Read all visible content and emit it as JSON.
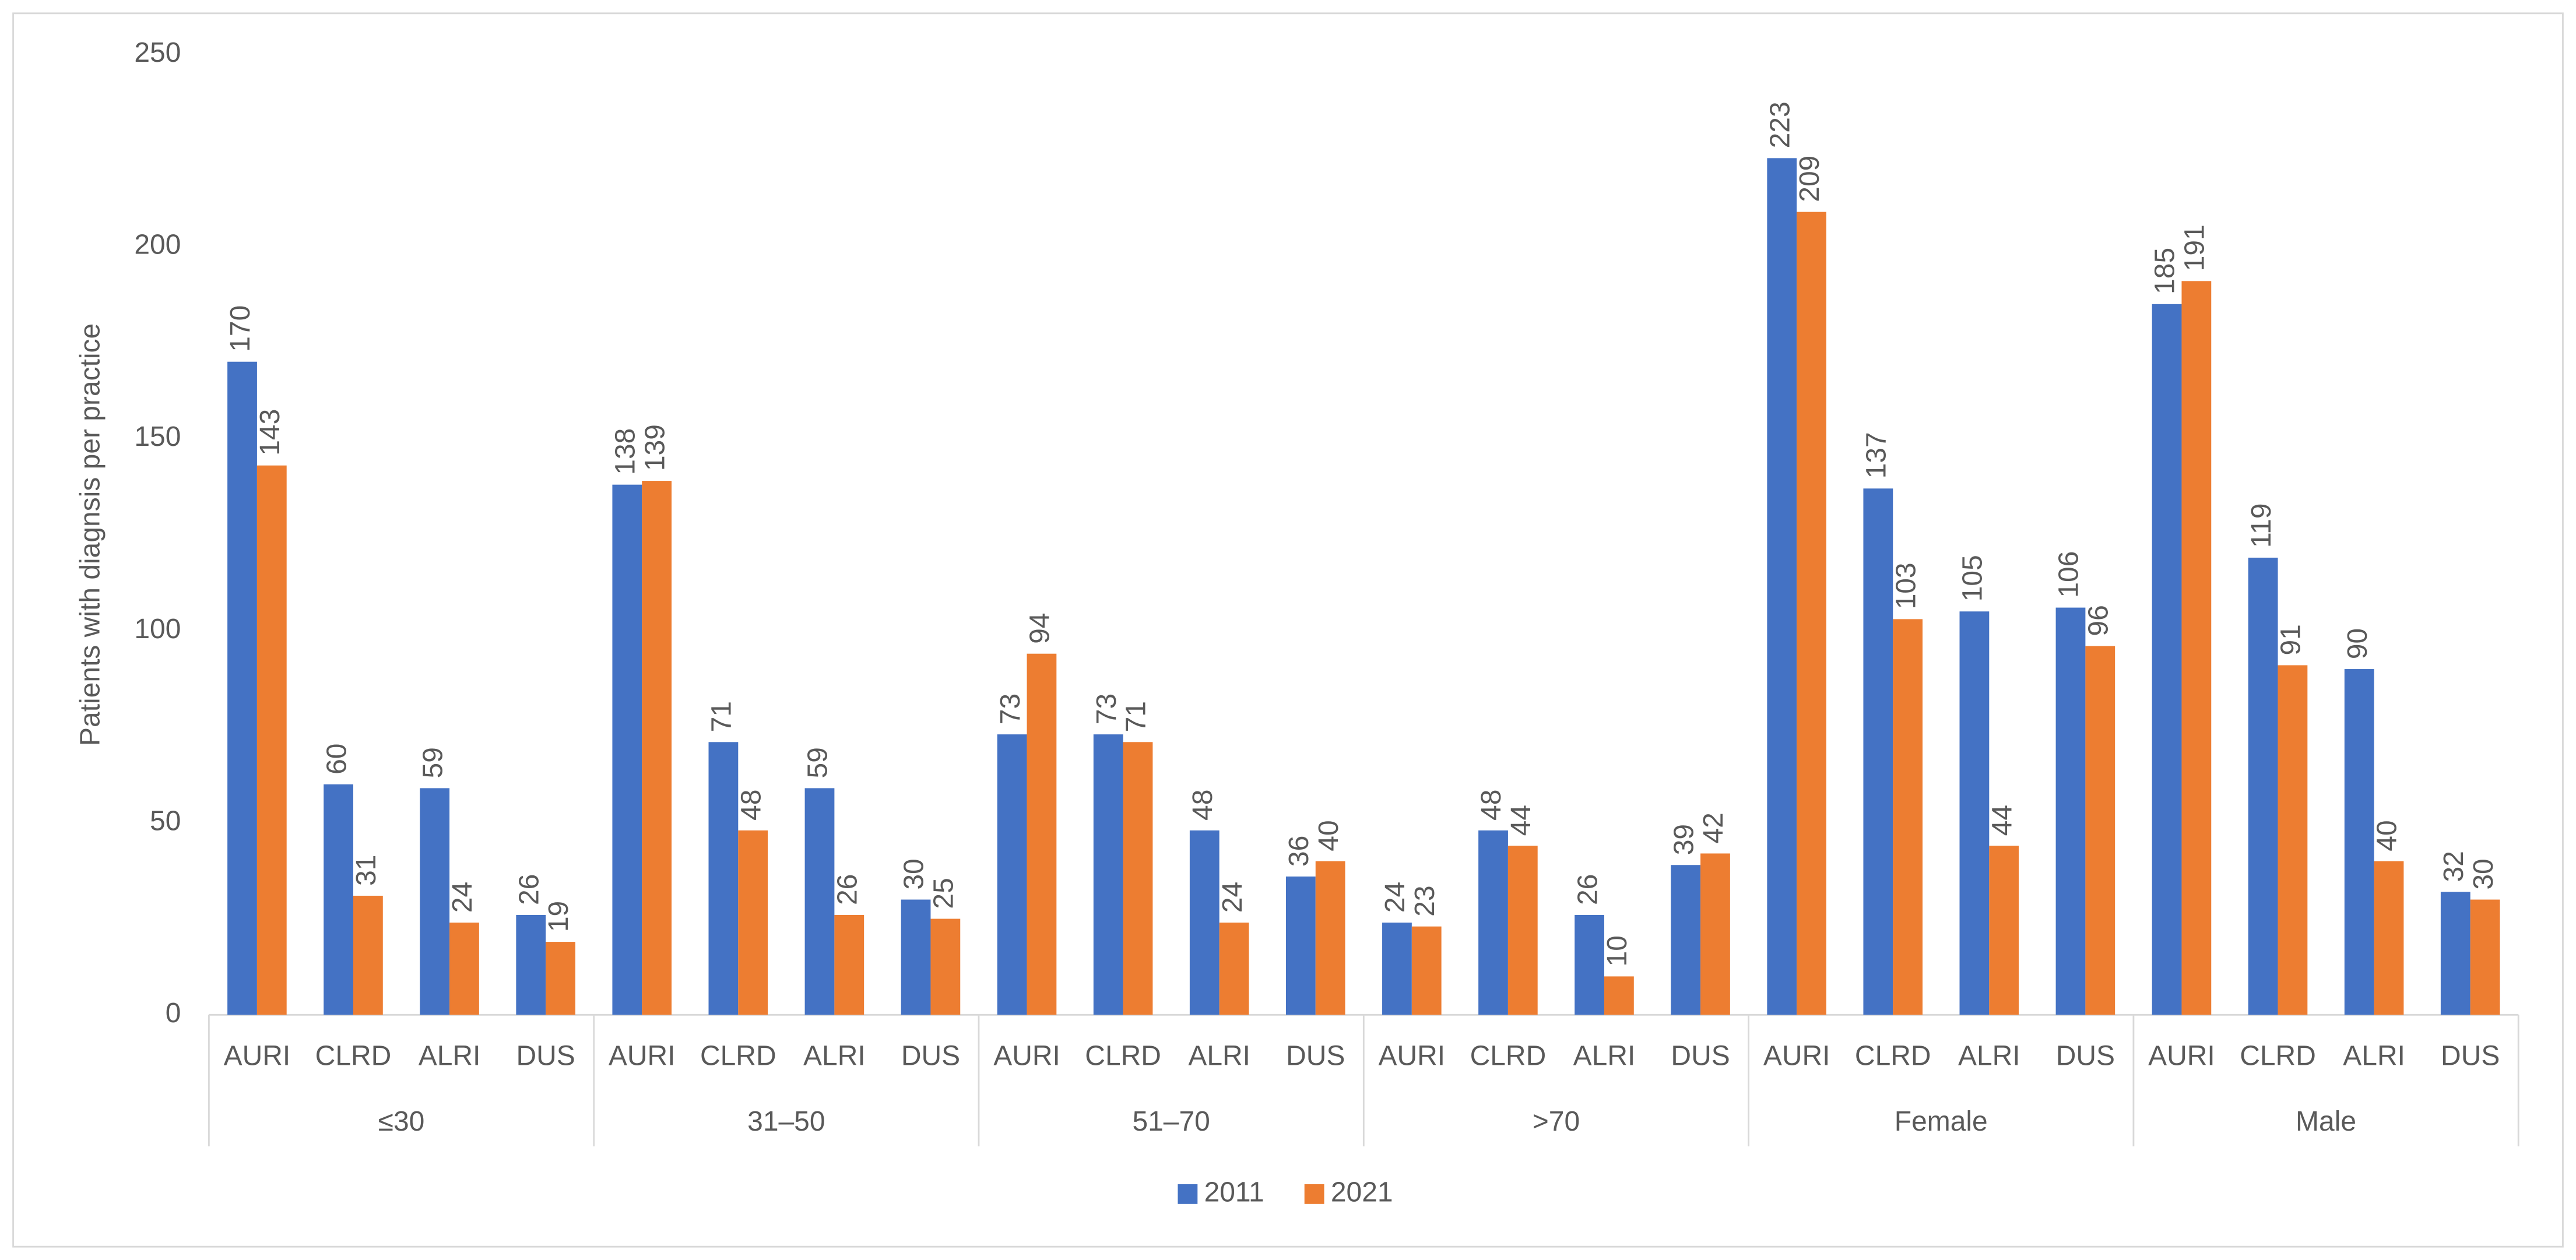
{
  "chart_data": {
    "type": "bar",
    "y_label": "Patients with diagnsis per practice",
    "groups": [
      "≤30",
      "31–50",
      "51–70",
      ">70",
      "Female",
      "Male"
    ],
    "categories": [
      "AURI",
      "CLRD",
      "ALRI",
      "DUS",
      "AURI",
      "CLRD",
      "ALRI",
      "DUS",
      "AURI",
      "CLRD",
      "ALRI",
      "DUS",
      "AURI",
      "CLRD",
      "ALRI",
      "DUS",
      "AURI",
      "CLRD",
      "ALRI",
      "DUS",
      "AURI",
      "CLRD",
      "ALRI",
      "DUS"
    ],
    "series": [
      {
        "name": "2011",
        "color": "#4472c4",
        "values": [
          170,
          60,
          59,
          26,
          138,
          71,
          59,
          30,
          73,
          73,
          48,
          36,
          24,
          48,
          26,
          39,
          223,
          137,
          105,
          106,
          185,
          119,
          90,
          32
        ]
      },
      {
        "name": "2021",
        "color": "#ed7d31",
        "values": [
          143,
          31,
          24,
          19,
          139,
          48,
          26,
          25,
          94,
          71,
          24,
          40,
          23,
          44,
          10,
          42,
          209,
          103,
          44,
          96,
          191,
          91,
          40,
          30
        ]
      }
    ],
    "ylim": [
      0,
      250
    ],
    "yticks": [
      0,
      50,
      100,
      150,
      200,
      250
    ],
    "grid": false,
    "legend": "bottom"
  }
}
